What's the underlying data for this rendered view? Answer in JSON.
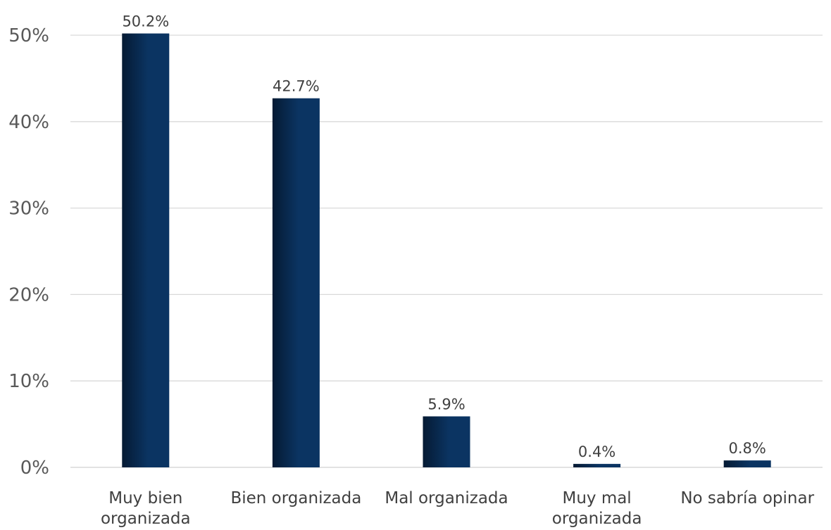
{
  "chart_data": {
    "type": "bar",
    "title": "",
    "xlabel": "",
    "ylabel": "",
    "categories": [
      [
        "Muy bien",
        "organizada"
      ],
      [
        "Bien organizada"
      ],
      [
        "Mal organizada"
      ],
      [
        "Muy mal",
        "organizada"
      ],
      [
        "No sabría opinar"
      ]
    ],
    "values": [
      50.2,
      42.7,
      5.9,
      0.4,
      0.8
    ],
    "data_labels": [
      "50.2%",
      "42.7%",
      "5.9%",
      "0.4%",
      "0.8%"
    ],
    "ylim": [
      0,
      50
    ],
    "yticks": [
      0,
      10,
      20,
      30,
      40,
      50
    ],
    "ytick_labels": [
      "0%",
      "10%",
      "20%",
      "30%",
      "40%",
      "50%"
    ],
    "grid": true,
    "legend": "none",
    "bar_color_dark": "#051a33",
    "bar_color": "#0b3462"
  }
}
